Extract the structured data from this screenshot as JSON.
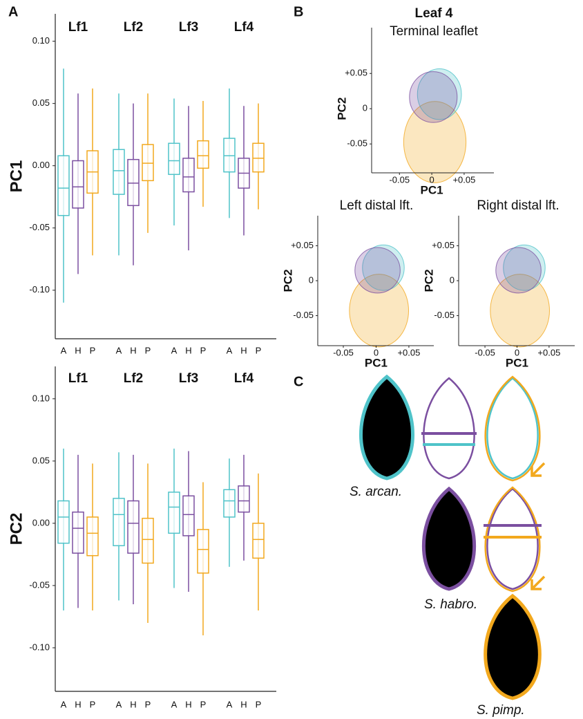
{
  "panel_labels": [
    "A",
    "B",
    "C"
  ],
  "chart_data": [
    {
      "type": "box",
      "ylabel": "PC1",
      "groups": [
        "Lf1",
        "Lf2",
        "Lf3",
        "Lf4"
      ],
      "categories": [
        "A",
        "H",
        "P"
      ],
      "colors": [
        "#4fc3c9",
        "#7b4fa0",
        "#f2a81d"
      ],
      "ylim": [
        -0.139,
        0.122
      ],
      "yticks": [
        {
          "value": -0.1,
          "label": "-0.10"
        },
        {
          "value": -0.05,
          "label": "-0.05"
        },
        {
          "value": 0,
          "label": "0.00"
        },
        {
          "value": 0.05,
          "label": "0.05"
        },
        {
          "value": 0.1,
          "label": "0.10"
        }
      ],
      "boxes": [
        [
          [
            -0.11,
            -0.04,
            -0.018,
            0.008,
            0.078
          ],
          [
            -0.087,
            -0.034,
            -0.017,
            0.004,
            0.058
          ],
          [
            -0.072,
            -0.022,
            -0.005,
            0.012,
            0.062
          ]
        ],
        [
          [
            -0.072,
            -0.023,
            -0.004,
            0.013,
            0.058
          ],
          [
            -0.08,
            -0.032,
            -0.014,
            0.005,
            0.05
          ],
          [
            -0.054,
            -0.012,
            0.002,
            0.017,
            0.058
          ]
        ],
        [
          [
            -0.048,
            -0.007,
            0.004,
            0.018,
            0.054
          ],
          [
            -0.068,
            -0.021,
            -0.009,
            0.006,
            0.048
          ],
          [
            -0.033,
            -0.002,
            0.008,
            0.02,
            0.052
          ]
        ],
        [
          [
            -0.042,
            -0.005,
            0.008,
            0.022,
            0.062
          ],
          [
            -0.056,
            -0.018,
            -0.006,
            0.006,
            0.048
          ],
          [
            -0.035,
            -0.005,
            0.006,
            0.018,
            0.05
          ]
        ]
      ]
    },
    {
      "type": "box",
      "ylabel": "PC2",
      "groups": [
        "Lf1",
        "Lf2",
        "Lf3",
        "Lf4"
      ],
      "categories": [
        "A",
        "H",
        "P"
      ],
      "colors": [
        "#4fc3c9",
        "#7b4fa0",
        "#f2a81d"
      ],
      "ylim": [
        -0.135,
        0.126
      ],
      "yticks": [
        {
          "value": -0.1,
          "label": "-0.10"
        },
        {
          "value": -0.05,
          "label": "-0.05"
        },
        {
          "value": 0,
          "label": "0.00"
        },
        {
          "value": 0.05,
          "label": "0.05"
        },
        {
          "value": 0.1,
          "label": "0.10"
        }
      ],
      "boxes": [
        [
          [
            -0.07,
            -0.016,
            0.005,
            0.018,
            0.06
          ],
          [
            -0.068,
            -0.024,
            -0.004,
            0.009,
            0.055
          ],
          [
            -0.07,
            -0.026,
            -0.008,
            0.005,
            0.048
          ]
        ],
        [
          [
            -0.062,
            -0.018,
            0.007,
            0.02,
            0.057
          ],
          [
            -0.065,
            -0.024,
            0,
            0.018,
            0.055
          ],
          [
            -0.08,
            -0.032,
            -0.013,
            0.004,
            0.048
          ]
        ],
        [
          [
            -0.052,
            -0.008,
            0.013,
            0.025,
            0.06
          ],
          [
            -0.055,
            -0.01,
            0.007,
            0.022,
            0.058
          ],
          [
            -0.09,
            -0.04,
            -0.021,
            -0.005,
            0.033
          ]
        ],
        [
          [
            -0.035,
            0.005,
            0.018,
            0.027,
            0.052
          ],
          [
            -0.03,
            0.009,
            0.018,
            0.03,
            0.055
          ],
          [
            -0.07,
            -0.028,
            -0.013,
            0,
            0.04
          ]
        ]
      ]
    },
    {
      "type": "scatter",
      "title": "Leaf 4",
      "subtitle": "Terminal leaflet",
      "xlabel": "PC1",
      "ylabel": "PC2",
      "colors": [
        "#4fc3c9",
        "#7b4fa0",
        "#f2a81d"
      ],
      "xlim": [
        -0.093,
        0.096
      ],
      "ylim": [
        -0.091,
        0.115
      ],
      "xticks": [
        -0.05,
        0,
        {
          "value": 0.05,
          "label": "+0.05"
        }
      ],
      "yticks": [
        -0.05,
        0,
        {
          "value": 0.05,
          "label": "+0.05"
        }
      ]
    },
    {
      "type": "scatter",
      "title": "Left distal lft.",
      "xlabel": "PC1",
      "ylabel": "PC2",
      "colors": [
        "#4fc3c9",
        "#7b4fa0",
        "#f2a81d"
      ],
      "xlim": [
        -0.089,
        0.088
      ],
      "ylim": [
        -0.093,
        0.093
      ],
      "xticks": [
        -0.05,
        0,
        {
          "value": 0.05,
          "label": "+0.05"
        }
      ],
      "yticks": [
        -0.05,
        0,
        {
          "value": 0.05,
          "label": "+0.05"
        }
      ]
    },
    {
      "type": "scatter",
      "title": "Right distal lft.",
      "xlabel": "PC1",
      "ylabel": "PC2",
      "colors": [
        "#4fc3c9",
        "#7b4fa0",
        "#f2a81d"
      ],
      "xlim": [
        -0.091,
        0.09
      ],
      "ylim": [
        -0.093,
        0.093
      ],
      "xticks": [
        -0.05,
        0,
        {
          "value": 0.05,
          "label": "+0.05"
        }
      ],
      "yticks": [
        -0.05,
        0,
        {
          "value": 0.05,
          "label": "+0.05"
        }
      ]
    }
  ],
  "panel_c": {
    "species": [
      "S. arcan.",
      "S. habro.",
      "S. pimp."
    ]
  }
}
